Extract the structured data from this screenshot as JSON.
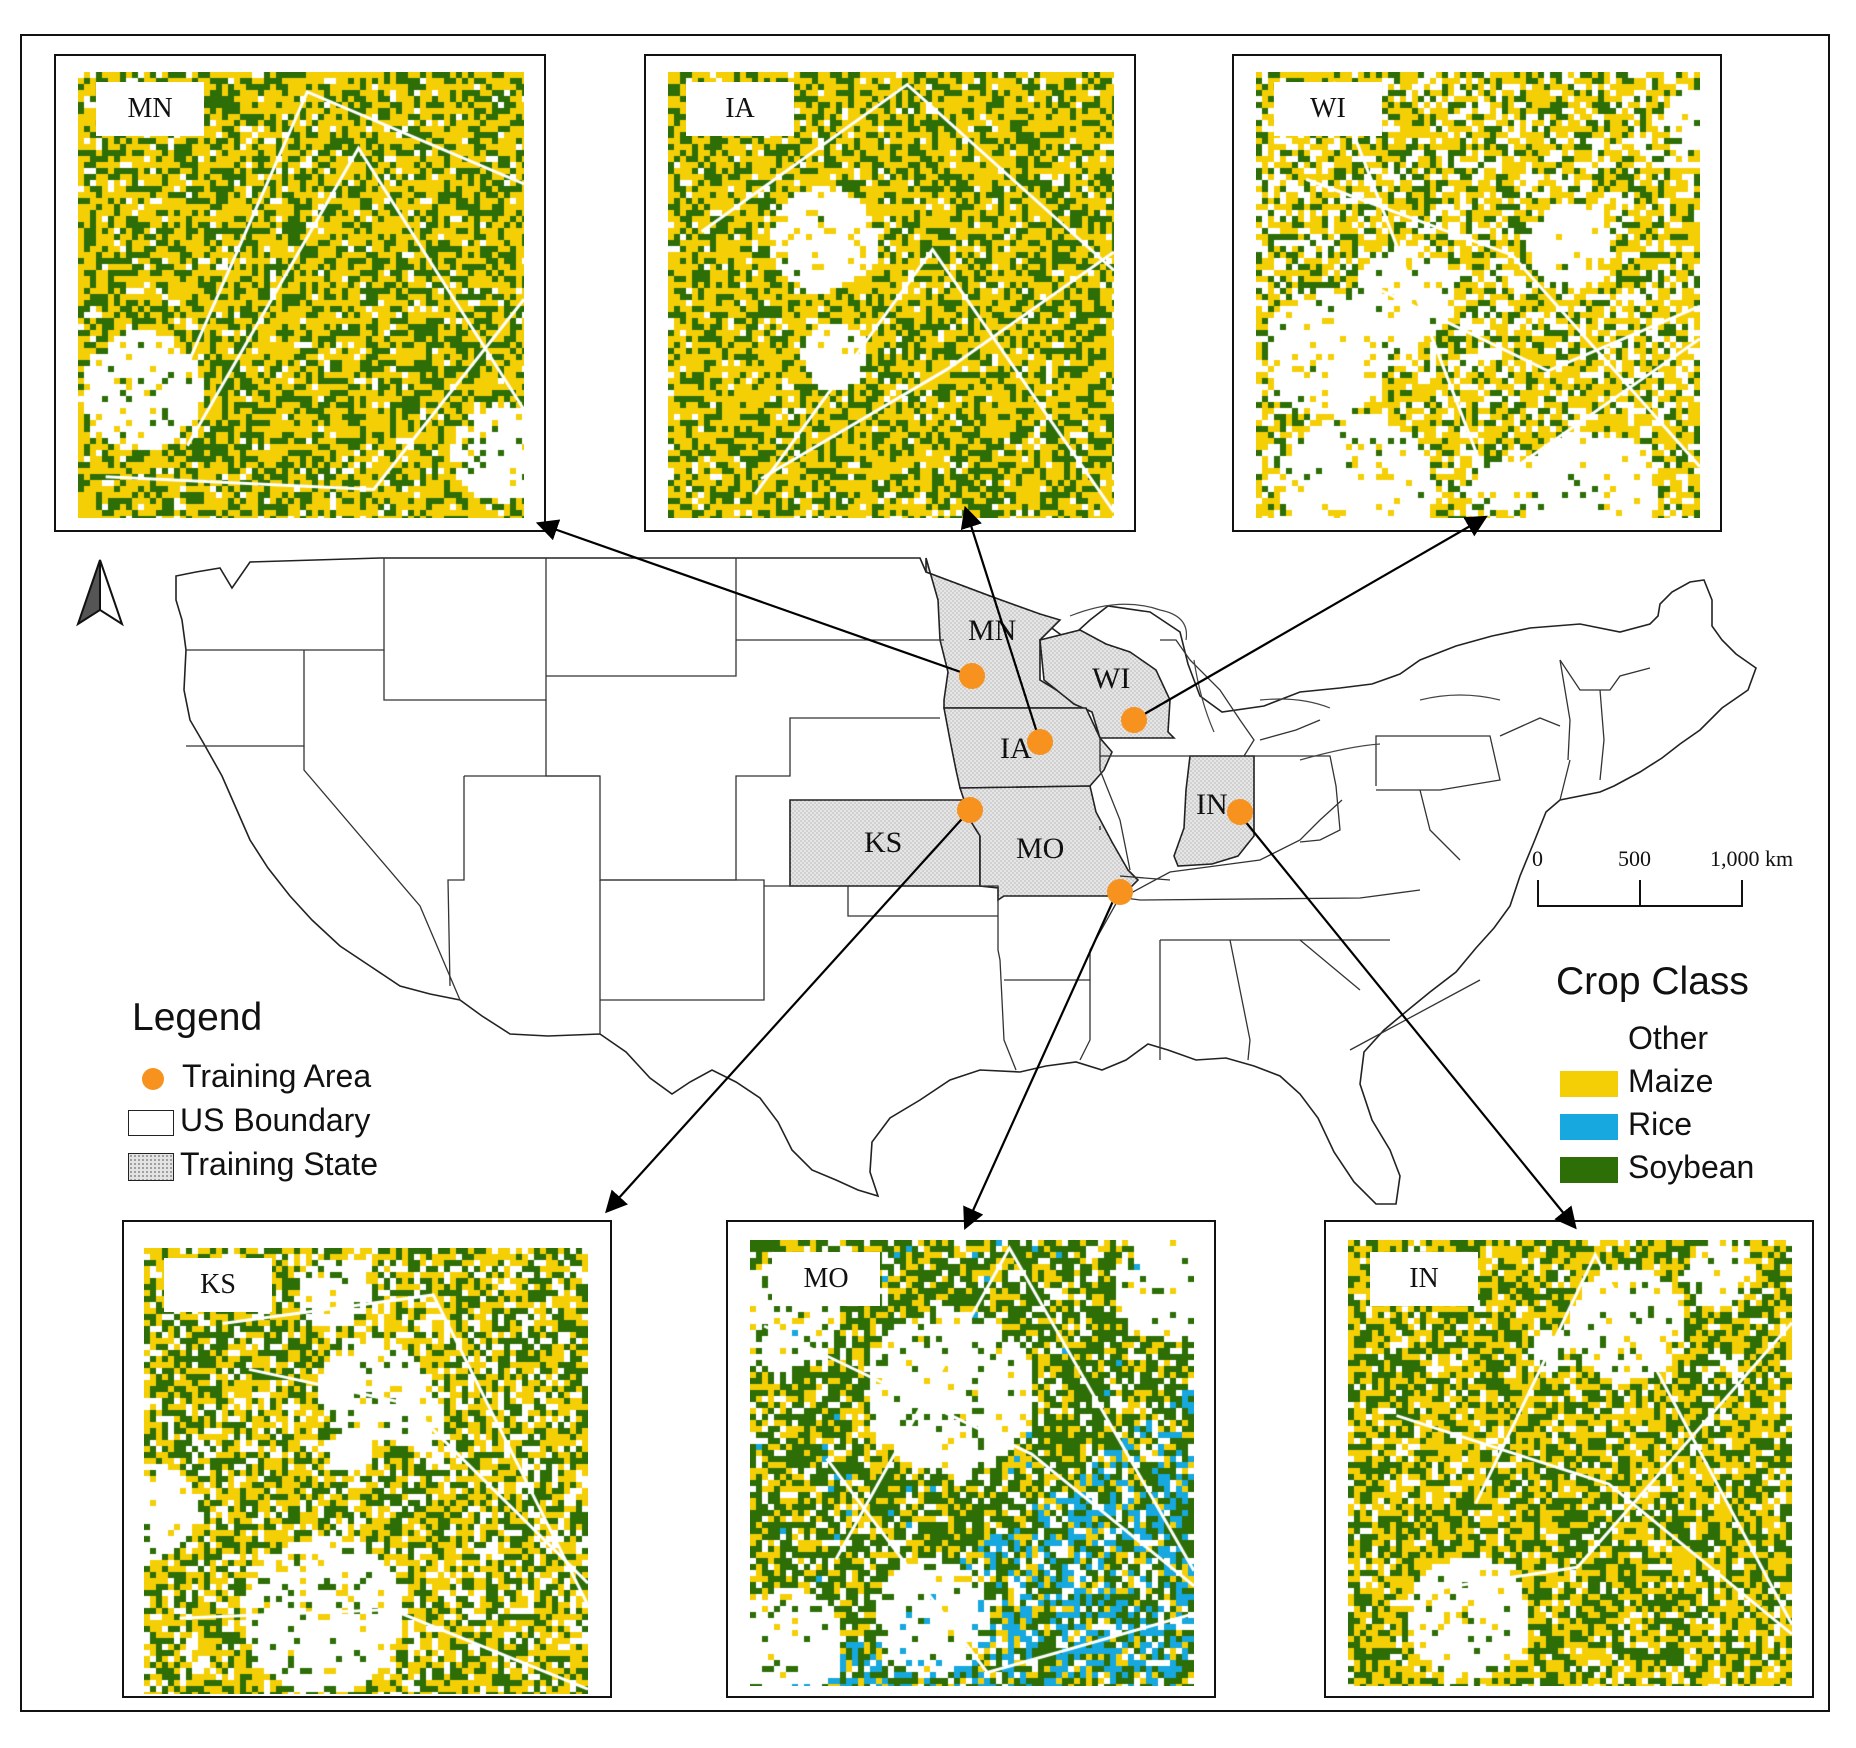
{
  "insets": [
    {
      "id": "MN",
      "label": "MN",
      "seed": 11,
      "other": 0.14,
      "maize": 0.5,
      "rice": 0.0,
      "soy": 0.36,
      "blockGap": []
    },
    {
      "id": "IA",
      "label": "IA",
      "seed": 23,
      "other": 0.14,
      "maize": 0.52,
      "rice": 0.0,
      "soy": 0.34,
      "blockGap": []
    },
    {
      "id": "WI",
      "label": "WI",
      "seed": 37,
      "other": 0.58,
      "maize": 0.28,
      "rice": 0.0,
      "soy": 0.14,
      "blockGap": []
    },
    {
      "id": "KS",
      "label": "KS",
      "seed": 41,
      "other": 0.44,
      "maize": 0.3,
      "rice": 0.0,
      "soy": 0.26,
      "blockGap": []
    },
    {
      "id": "MO",
      "label": "MO",
      "seed": 53,
      "other": 0.34,
      "maize": 0.18,
      "rice": 0.1,
      "soy": 0.38,
      "blockGap": []
    },
    {
      "id": "IN",
      "label": "IN",
      "seed": 67,
      "other": 0.28,
      "maize": 0.38,
      "rice": 0.0,
      "soy": 0.34,
      "blockGap": []
    }
  ],
  "state_labels": {
    "MN": "MN",
    "WI": "WI",
    "IA": "IA",
    "KS": "KS",
    "MO": "MO",
    "IN": "IN"
  },
  "legend": {
    "title": "Legend",
    "training_area": "Training Area",
    "us_boundary": "US Boundary",
    "training_state": "Training State"
  },
  "crop_class": {
    "title": "Crop Class",
    "classes": [
      {
        "label": "Other",
        "color": "#ffffff"
      },
      {
        "label": "Maize",
        "color": "#f5cf05"
      },
      {
        "label": "Rice",
        "color": "#16a8de"
      },
      {
        "label": "Soybean",
        "color": "#2d6e06"
      }
    ]
  },
  "scale_bar": {
    "ticks": [
      "0",
      "500",
      "1,000 km"
    ]
  },
  "colors": {
    "training_area": "#f7921e",
    "training_state": "#e3e3e3",
    "arrow": "#000000"
  }
}
